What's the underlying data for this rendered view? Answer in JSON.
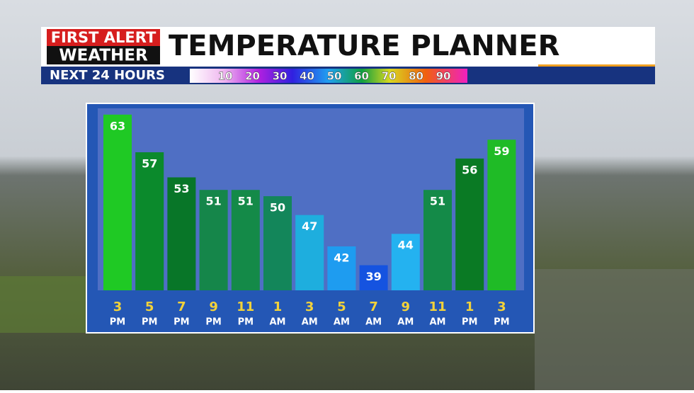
{
  "chart_data": {
    "type": "bar",
    "brand_top": "FIRST ALERT",
    "brand_bottom": "WEATHER",
    "title": "TEMPERATURE PLANNER",
    "subtitle": "NEXT 24 HOURS",
    "scale_labels": [
      10,
      20,
      30,
      40,
      50,
      60,
      70,
      80,
      90
    ],
    "categories": [
      [
        "3",
        "PM"
      ],
      [
        "5",
        "PM"
      ],
      [
        "7",
        "PM"
      ],
      [
        "9",
        "PM"
      ],
      [
        "11",
        "PM"
      ],
      [
        "1",
        "AM"
      ],
      [
        "3",
        "AM"
      ],
      [
        "5",
        "AM"
      ],
      [
        "7",
        "AM"
      ],
      [
        "9",
        "AM"
      ],
      [
        "11",
        "AM"
      ],
      [
        "1",
        "PM"
      ],
      [
        "3",
        "PM"
      ]
    ],
    "values": [
      63,
      57,
      53,
      51,
      51,
      50,
      47,
      42,
      39,
      44,
      51,
      56,
      59
    ],
    "colors": [
      "#1fc924",
      "#0b8a2c",
      "#087628",
      "#15864a",
      "#148a48",
      "#13865a",
      "#1eaede",
      "#1e9cf0",
      "#1553e0",
      "#24b2f0",
      "#148a48",
      "#0a7a24",
      "#1fbb26"
    ],
    "ylim": [
      35,
      64
    ]
  }
}
